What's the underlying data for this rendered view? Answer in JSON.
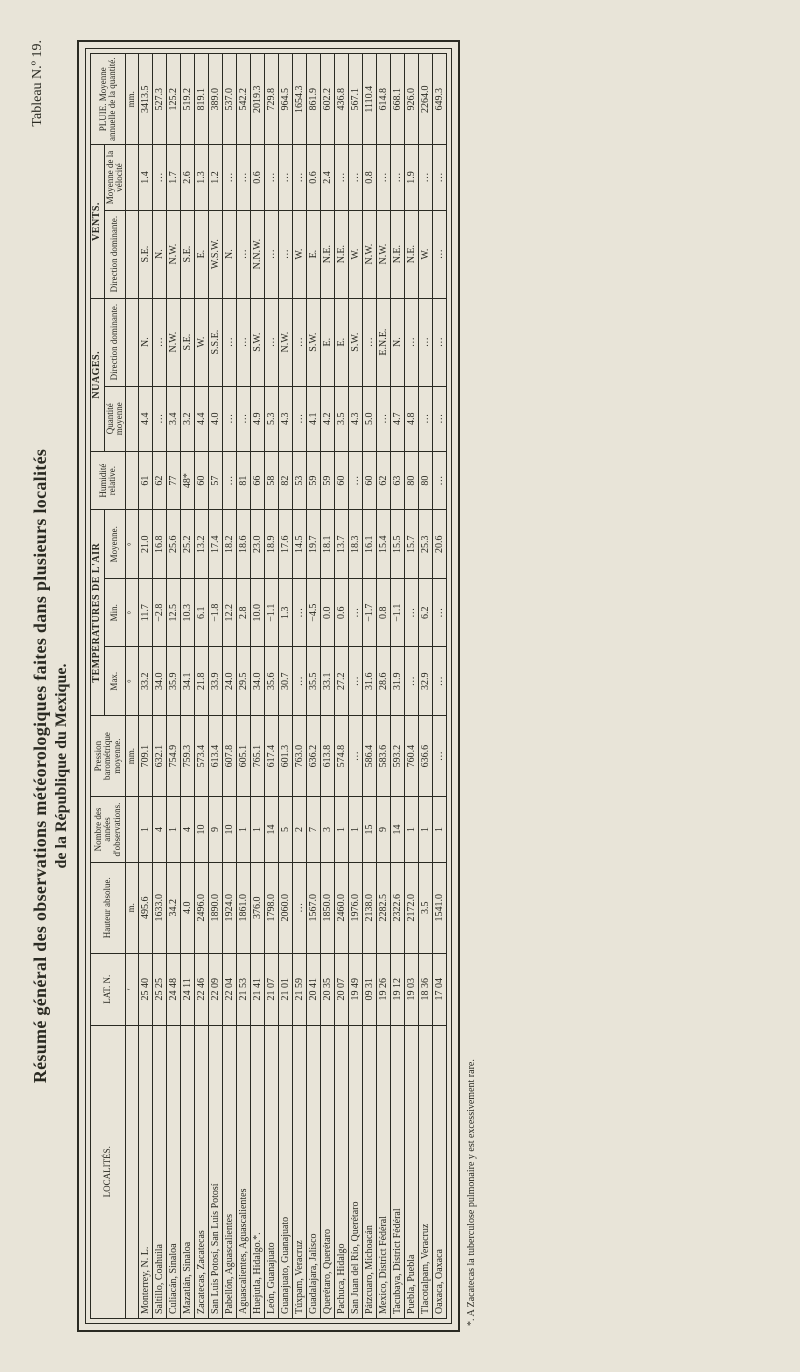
{
  "labels": {
    "top_left": "Résumé général des observations météorologiques faites dans plusieurs localités",
    "top_sub": "de la République du Mexique.",
    "top_right": "Tableau N.º 19.",
    "footnote": "*. A Zacatecas la tuberculose pulmonaire y est excessivement rare."
  },
  "headers": {
    "localites": "LOCALITÉS.",
    "lat": "LAT. N.",
    "hauteur": "Hauteur absolue.",
    "nobs": "Nombre des années d'observations.",
    "pression": "Pression barométrique moyenne.",
    "temp_group": "TEMPÉRATURES DE L'AIR",
    "max": "Max.",
    "min": "Min.",
    "moyenne": "Moyenne.",
    "humidite": "Humidité relative.",
    "nuages_group": "NUAGES.",
    "n_qty": "Quantité moyenne",
    "n_dir": "Direction dominante.",
    "vents_group": "VENTS.",
    "v_dir": "Direction dominante.",
    "v_vel": "Moyenne de la vélocité",
    "pluie": "PLUIE. Moyenne annuelle de la quantité."
  },
  "units": {
    "hauteur": "m.",
    "pression": "mm.",
    "temp": "°",
    "pluie": "mm."
  },
  "rows": [
    {
      "loc": "Monterrey, N. L.",
      "lat": "25 40",
      "alt": "495.6",
      "nobs": "1",
      "press": "709.1",
      "max": "33.2",
      "min": "11.7",
      "moy": "21.0",
      "hum": "61",
      "nqty": "4.4",
      "ndir": "N.",
      "vdir": "S.E.",
      "vvel": "1.4",
      "rain": "3413.5"
    },
    {
      "loc": "Saltillo, Coahuila",
      "lat": "25 25",
      "alt": "1633.0",
      "nobs": "4",
      "press": "632.1",
      "max": "34.0",
      "min": "−2.8",
      "moy": "16.8",
      "hum": "62",
      "nqty": "…",
      "ndir": "…",
      "vdir": "N.",
      "vvel": "…",
      "rain": "527.3"
    },
    {
      "loc": "Culiacán, Sinaloa",
      "lat": "24 48",
      "alt": "34.2",
      "nobs": "1",
      "press": "754.9",
      "max": "35.9",
      "min": "12.5",
      "moy": "25.6",
      "hum": "77",
      "nqty": "3.4",
      "ndir": "N.W.",
      "vdir": "N.W.",
      "vvel": "1.7",
      "rain": "125.2"
    },
    {
      "loc": "Mazatlán, Sinaloa",
      "lat": "24 11",
      "alt": "4.0",
      "nobs": "4",
      "press": "759.3",
      "max": "34.1",
      "min": "10.3",
      "moy": "25.2",
      "hum": "48*",
      "nqty": "3.2",
      "ndir": "S.E.",
      "vdir": "S.E.",
      "vvel": "2.6",
      "rain": "519.2"
    },
    {
      "loc": "Zacatecas, Zacatecas",
      "lat": "22 46",
      "alt": "2496.0",
      "nobs": "10",
      "press": "573.4",
      "max": "21.8",
      "min": "6.1",
      "moy": "13.2",
      "hum": "60",
      "nqty": "4.4",
      "ndir": "W.",
      "vdir": "E.",
      "vvel": "1.3",
      "rain": "819.1"
    },
    {
      "loc": "San Luis Potosí, San Luis Potosí",
      "lat": "22 09",
      "alt": "1890.0",
      "nobs": "9",
      "press": "613.4",
      "max": "33.9",
      "min": "−1.8",
      "moy": "17.4",
      "hum": "57",
      "nqty": "4.0",
      "ndir": "S.S.E.",
      "vdir": "W.S.W.",
      "vvel": "1.2",
      "rain": "389.0"
    },
    {
      "loc": "Pabellón, Aguascalientes",
      "lat": "22 04",
      "alt": "1924.0",
      "nobs": "10",
      "press": "607.8",
      "max": "24.0",
      "min": "12.2",
      "moy": "18.2",
      "hum": "…",
      "nqty": "…",
      "ndir": "…",
      "vdir": "N.",
      "vvel": "…",
      "rain": "537.0"
    },
    {
      "loc": "Aguascalientes, Aguascalientes",
      "lat": "21 53",
      "alt": "1861.0",
      "nobs": "1",
      "press": "605.1",
      "max": "29.5",
      "min": "2.8",
      "moy": "18.6",
      "hum": "81",
      "nqty": "…",
      "ndir": "…",
      "vdir": "…",
      "vvel": "…",
      "rain": "542.2"
    },
    {
      "loc": "Huejutla, Hidalgo.*.",
      "lat": "21 41",
      "alt": "376.0",
      "nobs": "1",
      "press": "765.1",
      "max": "34.0",
      "min": "10.0",
      "moy": "23.0",
      "hum": "66",
      "nqty": "4.9",
      "ndir": "S.W.",
      "vdir": "N.N.W.",
      "vvel": "0.6",
      "rain": "2019.3"
    },
    {
      "loc": "León, Guanajuato",
      "lat": "21 07",
      "alt": "1798.0",
      "nobs": "14",
      "press": "617.4",
      "max": "35.6",
      "min": "−1.1",
      "moy": "18.9",
      "hum": "58",
      "nqty": "5.3",
      "ndir": "…",
      "vdir": "…",
      "vvel": "…",
      "rain": "729.8"
    },
    {
      "loc": "Guanajuato, Guanajuato",
      "lat": "21 01",
      "alt": "2060.0",
      "nobs": "5",
      "press": "601.3",
      "max": "30.7",
      "min": "1.3",
      "moy": "17.6",
      "hum": "82",
      "nqty": "4.3",
      "ndir": "N.W.",
      "vdir": "…",
      "vvel": "…",
      "rain": "964.5"
    },
    {
      "loc": "Túxpam, Veracruz",
      "lat": "21 59",
      "alt": "…",
      "nobs": "2",
      "press": "763.0",
      "max": "…",
      "min": "…",
      "moy": "14.5",
      "hum": "53",
      "nqty": "…",
      "ndir": "…",
      "vdir": "W.",
      "vvel": "…",
      "rain": "1654.3"
    },
    {
      "loc": "Guadalajara, Jalisco",
      "lat": "20 41",
      "alt": "1567.0",
      "nobs": "7",
      "press": "636.2",
      "max": "35.5",
      "min": "−4.5",
      "moy": "19.7",
      "hum": "59",
      "nqty": "4.1",
      "ndir": "S.W.",
      "vdir": "E.",
      "vvel": "0.6",
      "rain": "861.9"
    },
    {
      "loc": "Querétaro, Querétaro",
      "lat": "20 35",
      "alt": "1850.0",
      "nobs": "3",
      "press": "613.8",
      "max": "33.1",
      "min": "0.0",
      "moy": "18.1",
      "hum": "59",
      "nqty": "4.2",
      "ndir": "E.",
      "vdir": "N.E.",
      "vvel": "2.4",
      "rain": "602.2"
    },
    {
      "loc": "Pachuca, Hidalgo",
      "lat": "20 07",
      "alt": "2460.0",
      "nobs": "1",
      "press": "574.8",
      "max": "27.2",
      "min": "0.6",
      "moy": "13.7",
      "hum": "60",
      "nqty": "3.5",
      "ndir": "E.",
      "vdir": "N.E.",
      "vvel": "…",
      "rain": "436.8"
    },
    {
      "loc": "San Juan del Río, Querétaro",
      "lat": "19 49",
      "alt": "1976.0",
      "nobs": "1",
      "press": "…",
      "max": "…",
      "min": "…",
      "moy": "18.3",
      "hum": "…",
      "nqty": "4.3",
      "ndir": "S.W.",
      "vdir": "W.",
      "vvel": "…",
      "rain": "567.1"
    },
    {
      "loc": "Pátzcuaro, Michoacán",
      "lat": "09 31",
      "alt": "2138.0",
      "nobs": "15",
      "press": "586.4",
      "max": "31.6",
      "min": "−1.7",
      "moy": "16.1",
      "hum": "60",
      "nqty": "5.0",
      "ndir": "…",
      "vdir": "N.W.",
      "vvel": "0.8",
      "rain": "1110.4"
    },
    {
      "loc": "Mexico, District Fédéral",
      "lat": "19 26",
      "alt": "2282.5",
      "nobs": "9",
      "press": "583.6",
      "max": "28.6",
      "min": "0.8",
      "moy": "15.4",
      "hum": "62",
      "nqty": "…",
      "ndir": "E.N.E.",
      "vdir": "N.W.",
      "vvel": "…",
      "rain": "614.8"
    },
    {
      "loc": "Tacubaya, District Fédéral",
      "lat": "19 12",
      "alt": "2322.6",
      "nobs": "14",
      "press": "593.2",
      "max": "31.9",
      "min": "−1.1",
      "moy": "15.5",
      "hum": "63",
      "nqty": "4.7",
      "ndir": "N.",
      "vdir": "N.E.",
      "vvel": "…",
      "rain": "668.1"
    },
    {
      "loc": "Puebla, Puebla",
      "lat": "19 03",
      "alt": "2172.0",
      "nobs": "1",
      "press": "760.4",
      "max": "…",
      "min": "…",
      "moy": "15.7",
      "hum": "80",
      "nqty": "4.8",
      "ndir": "…",
      "vdir": "N.E.",
      "vvel": "1.9",
      "rain": "926.0"
    },
    {
      "loc": "Tlacotalpam, Veracruz",
      "lat": "18 36",
      "alt": "3.5",
      "nobs": "1",
      "press": "636.6",
      "max": "32.9",
      "min": "6.2",
      "moy": "25.3",
      "hum": "80",
      "nqty": "…",
      "ndir": "…",
      "vdir": "W.",
      "vvel": "…",
      "rain": "2264.0"
    },
    {
      "loc": "Oaxaca, Oaxaca",
      "lat": "17 04",
      "alt": "1541.0",
      "nobs": "1",
      "press": "…",
      "max": "…",
      "min": "…",
      "moy": "20.6",
      "hum": "…",
      "nqty": "…",
      "ndir": "…",
      "vdir": "…",
      "vvel": "…",
      "rain": "649.3"
    }
  ],
  "style": {
    "background": "#e8e4d8",
    "ink": "#2a2a22",
    "font": "Times New Roman",
    "title_size_pt": 18,
    "body_size_pt": 10
  }
}
